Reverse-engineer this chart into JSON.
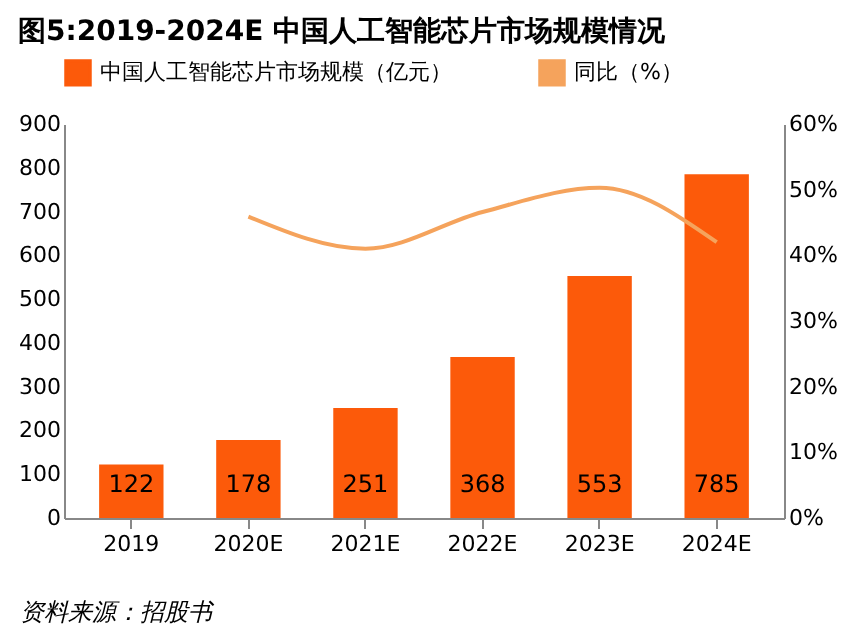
{
  "chart_data": {
    "type": "bar",
    "title": "图5:2019-2024E 中国人工智能芯片市场规模情况",
    "categories": [
      "2019",
      "2020E",
      "2021E",
      "2022E",
      "2023E",
      "2024E"
    ],
    "series": [
      {
        "name": "中国人工智能芯片市场规模（亿元）",
        "color": "#fc5a0a",
        "values": [
          122,
          178,
          251,
          368,
          553,
          785
        ],
        "value_labels": [
          "122",
          "178",
          "251",
          "368",
          "553",
          "785"
        ]
      },
      {
        "name": "同比（%）",
        "type": "line",
        "axis": "y2",
        "color": "#f5a35c",
        "values": [
          null,
          45.9,
          41.0,
          46.6,
          50.3,
          42.0
        ]
      }
    ],
    "ylim": [
      0,
      900
    ],
    "yticks": [
      0,
      100,
      200,
      300,
      400,
      500,
      600,
      700,
      800,
      900
    ],
    "y2lim": [
      0,
      60
    ],
    "y2ticks": [
      {
        "value": 0,
        "label": "0%"
      },
      {
        "value": 10,
        "label": "10%"
      },
      {
        "value": 20,
        "label": "20%"
      },
      {
        "value": 30,
        "label": "30%"
      },
      {
        "value": 40,
        "label": "40%"
      },
      {
        "value": 50,
        "label": "50%"
      },
      {
        "value": 60,
        "label": "60%"
      }
    ],
    "legend": "top",
    "grid": false,
    "marker": "none",
    "line_style": "solid",
    "annotations": [
      "资料来源：招股书"
    ]
  }
}
